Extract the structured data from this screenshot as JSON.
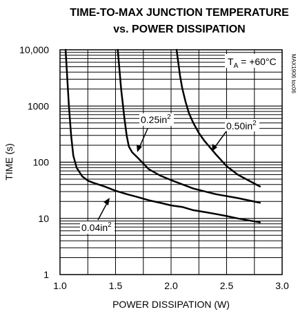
{
  "chart_data": {
    "type": "line",
    "title": [
      "TIME-TO-MAX JUNCTION TEMPERATURE",
      "vs. POWER DISSIPATION"
    ],
    "xlabel": "POWER DISSIPATION (W)",
    "ylabel": "TIME (s)",
    "xlim": [
      1.0,
      3.0
    ],
    "ylim": [
      1,
      10000
    ],
    "yscale": "log",
    "grid": true,
    "x_ticks": [
      "1.0",
      "1.5",
      "2.0",
      "2.5",
      "3.0"
    ],
    "y_ticks": [
      "1",
      "10",
      "100",
      "1000",
      "10,000"
    ],
    "condition": {
      "prefix": "T",
      "subscript": "A",
      "suffix": " = +60°C"
    },
    "part_number": "MAX1906 toc06",
    "series": [
      {
        "name": "0.04in2",
        "label_text": "0.04in",
        "label_sup": "2",
        "x": [
          1.05,
          1.08,
          1.1,
          1.12,
          1.15,
          1.2,
          1.25,
          1.3,
          1.4,
          1.5,
          1.6,
          1.7,
          1.8,
          1.9,
          2.0,
          2.1,
          2.2,
          2.3,
          2.4,
          2.5,
          2.6,
          2.7,
          2.8
        ],
        "y": [
          10000,
          1000,
          300,
          130,
          80,
          56,
          47,
          43,
          37,
          31,
          27,
          24,
          21,
          19,
          17,
          16,
          14,
          13,
          12,
          11,
          10,
          9.2,
          8.5
        ]
      },
      {
        "name": "0.25in2",
        "label_text": "0.25in",
        "label_sup": "2",
        "x": [
          1.52,
          1.55,
          1.58,
          1.6,
          1.62,
          1.65,
          1.7,
          1.8,
          1.9,
          2.0,
          2.2,
          2.4,
          2.6,
          2.8
        ],
        "y": [
          10000,
          2000,
          600,
          300,
          190,
          150,
          120,
          75,
          58,
          48,
          34,
          27,
          23,
          19
        ]
      },
      {
        "name": "0.50in2",
        "label_text": "0.50in",
        "label_sup": "2",
        "x": [
          2.05,
          2.08,
          2.1,
          2.13,
          2.16,
          2.2,
          2.25,
          2.3,
          2.4,
          2.5,
          2.6,
          2.7,
          2.8
        ],
        "y": [
          10000,
          3500,
          2100,
          1200,
          750,
          500,
          330,
          240,
          140,
          85,
          60,
          47,
          37
        ]
      }
    ]
  }
}
